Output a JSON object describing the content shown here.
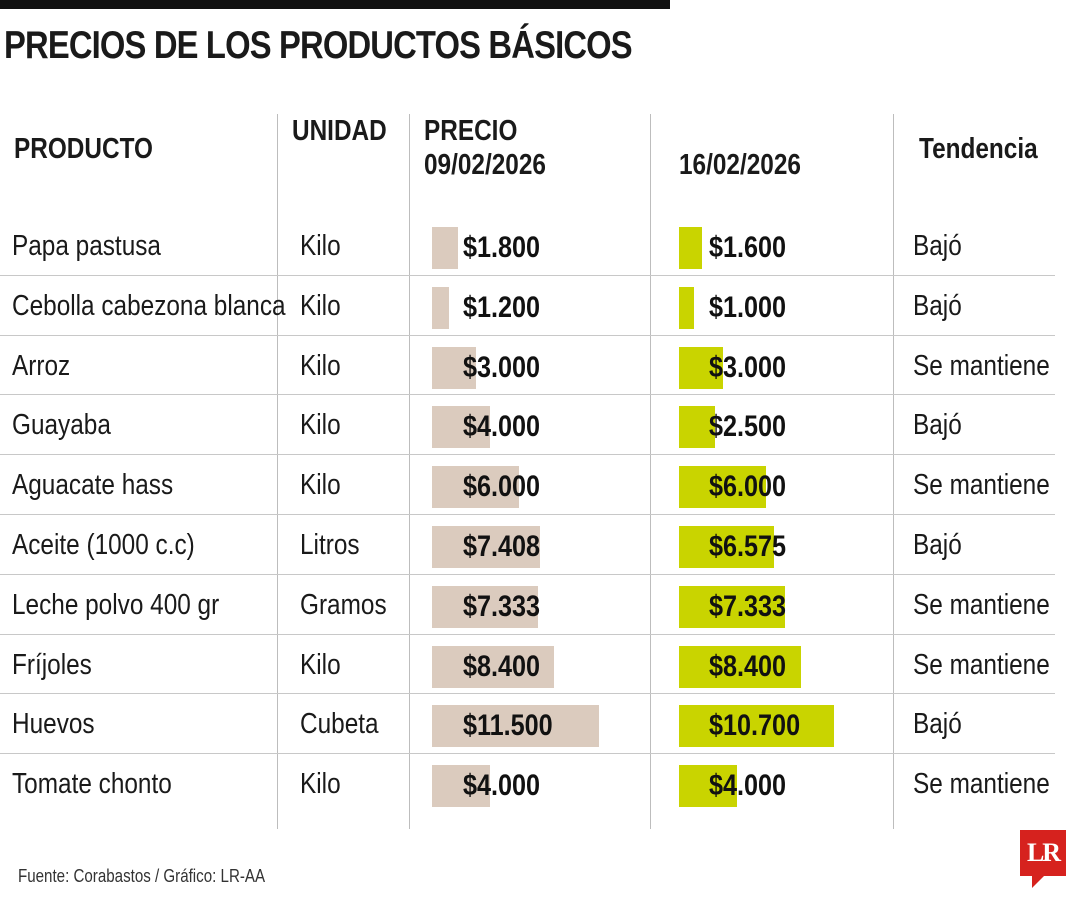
{
  "title": "PRECIOS DE LOS PRODUCTOS BÁSICOS",
  "source": "Fuente: Corabastos / Gráfico: LR-AA",
  "logo": "LR",
  "colors": {
    "old_bar": "#dbcbbe",
    "new_bar": "#c9d400",
    "logo": "#d6221e"
  },
  "chart_data": {
    "type": "table",
    "title": "PRECIOS DE LOS PRODUCTOS BÁSICOS",
    "columns": {
      "product": "PRODUCTO",
      "unit": "UNIDAD",
      "price_label": "PRECIO",
      "date1": "09/02/2026",
      "date2": "16/02/2026",
      "trend": "Tendencia"
    },
    "rows": [
      {
        "product": "Papa pastusa",
        "unit": "Kilo",
        "price1": 1800,
        "price1_label": "$1.800",
        "price2": 1600,
        "price2_label": "$1.600",
        "trend": "Bajó"
      },
      {
        "product": "Cebolla cabezona blanca",
        "unit": "Kilo",
        "price1": 1200,
        "price1_label": "$1.200",
        "price2": 1000,
        "price2_label": "$1.000",
        "trend": "Bajó"
      },
      {
        "product": "Arroz",
        "unit": "Kilo",
        "price1": 3000,
        "price1_label": "$3.000",
        "price2": 3000,
        "price2_label": "$3.000",
        "trend": "Se mantiene"
      },
      {
        "product": "Guayaba",
        "unit": "Kilo",
        "price1": 4000,
        "price1_label": "$4.000",
        "price2": 2500,
        "price2_label": "$2.500",
        "trend": "Bajó"
      },
      {
        "product": "Aguacate hass",
        "unit": "Kilo",
        "price1": 6000,
        "price1_label": "$6.000",
        "price2": 6000,
        "price2_label": "$6.000",
        "trend": "Se mantiene"
      },
      {
        "product": "Aceite (1000 c.c)",
        "unit": "Litros",
        "price1": 7408,
        "price1_label": "$7.408",
        "price2": 6575,
        "price2_label": "$6.575",
        "trend": "Bajó"
      },
      {
        "product": "Leche polvo 400 gr",
        "unit": "Gramos",
        "price1": 7333,
        "price1_label": "$7.333",
        "price2": 7333,
        "price2_label": "$7.333",
        "trend": "Se mantiene"
      },
      {
        "product": "Fríjoles",
        "unit": "Kilo",
        "price1": 8400,
        "price1_label": "$8.400",
        "price2": 8400,
        "price2_label": "$8.400",
        "trend": "Se mantiene"
      },
      {
        "product": "Huevos",
        "unit": "Cubeta",
        "price1": 11500,
        "price1_label": "$11.500",
        "price2": 10700,
        "price2_label": "$10.700",
        "trend": "Bajó"
      },
      {
        "product": "Tomate chonto",
        "unit": "Kilo",
        "price1": 4000,
        "price1_label": "$4.000",
        "price2": 4000,
        "price2_label": "$4.000",
        "trend": "Se mantiene"
      }
    ]
  }
}
